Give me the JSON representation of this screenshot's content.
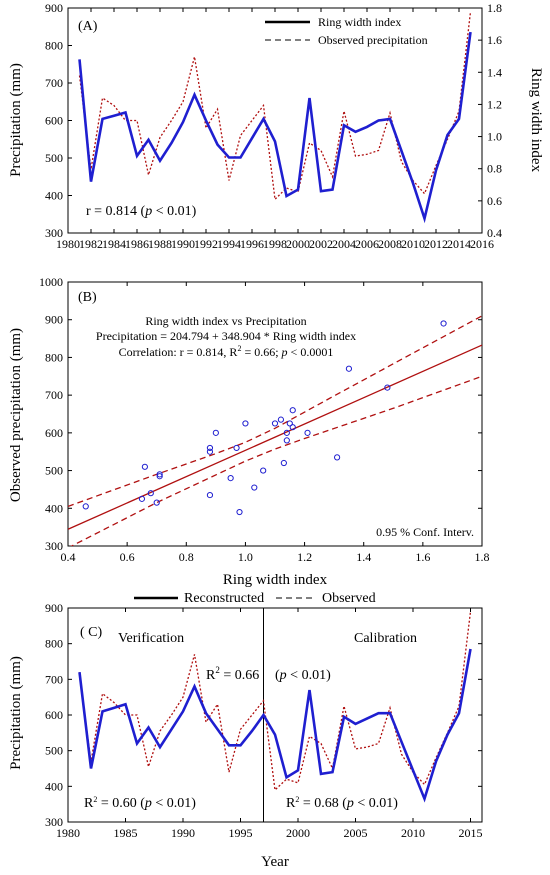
{
  "chart_data": [
    {
      "type": "line",
      "panel_label": "(A)",
      "xlabel": "",
      "ylabel": "Precipitation (mm)",
      "ylabel_right": "Ring width index",
      "xlim": [
        1980,
        2016
      ],
      "ylim": [
        300,
        900
      ],
      "ylim_right": [
        0.4,
        1.8
      ],
      "xticks": [
        "1980",
        "1982",
        "1984",
        "1986",
        "1988",
        "1990",
        "1992",
        "1994",
        "1996",
        "1998",
        "2000",
        "2002",
        "2004",
        "2006",
        "2008",
        "2010",
        "2012",
        "2014",
        "2016"
      ],
      "yticks": [
        "300",
        "400",
        "500",
        "600",
        "700",
        "800",
        "900"
      ],
      "yticks_right": [
        "0.4",
        "0.6",
        "0.8",
        "1.0",
        "1.2",
        "1.4",
        "1.6",
        "1.8"
      ],
      "legend": [
        "Ring width index",
        "Observed precipitation"
      ],
      "legend_position": "top-right",
      "annotation": "r = 0.814 (",
      "annotation_p": "p",
      "annotation_tail": " < 0.01)",
      "x": [
        1981,
        1982,
        1983,
        1984,
        1985,
        1986,
        1987,
        1988,
        1989,
        1990,
        1991,
        1992,
        1993,
        1994,
        1995,
        1996,
        1997,
        1998,
        1999,
        2000,
        2001,
        2002,
        2003,
        2004,
        2005,
        2006,
        2007,
        2008,
        2009,
        2010,
        2011,
        2012,
        2013,
        2014,
        2015
      ],
      "series": [
        {
          "name": "Ring width index",
          "axis": "right",
          "values": [
            1.48,
            0.72,
            1.11,
            1.13,
            1.15,
            0.88,
            0.98,
            0.85,
            0.96,
            1.09,
            1.26,
            1.1,
            0.95,
            0.87,
            0.87,
            0.99,
            1.11,
            0.97,
            0.63,
            0.67,
            1.24,
            0.66,
            0.67,
            1.07,
            1.03,
            1.06,
            1.1,
            1.11,
            0.91,
            0.71,
            0.49,
            0.79,
            1.01,
            1.11,
            1.65
          ]
        },
        {
          "name": "Observed precipitation",
          "axis": "left",
          "values": [
            720,
            470,
            660,
            640,
            600,
            600,
            455,
            555,
            600,
            650,
            770,
            580,
            630,
            440,
            560,
            600,
            640,
            390,
            420,
            410,
            540,
            520,
            450,
            625,
            505,
            510,
            520,
            620,
            490,
            440,
            405,
            480,
            550,
            625,
            890
          ]
        }
      ]
    },
    {
      "type": "scatter",
      "panel_label": "(B)",
      "xlabel": "Ring width index",
      "ylabel": "Observed precipitation (mm)",
      "xlim": [
        0.4,
        1.8
      ],
      "ylim": [
        300,
        1000
      ],
      "xticks": [
        "0.4",
        "0.6",
        "0.8",
        "1.0",
        "1.2",
        "1.4",
        "1.6",
        "1.8"
      ],
      "yticks": [
        "300",
        "400",
        "500",
        "600",
        "700",
        "800",
        "900",
        "1000"
      ],
      "eq_title": "Ring width index vs Precipitation",
      "equation": "Precipitation = 204.794 + 348.904 * Ring width index",
      "corr_prefix": "Correlation: r = 0.814, R",
      "corr_sup": "2",
      "corr_mid": " = 0.66; ",
      "corr_p": "p",
      "corr_tail": " < 0.0001",
      "conf_label": "0.95 %  Conf. Interv.",
      "intercept": 204.794,
      "slope": 348.904,
      "ci_lower": [
        [
          0.4,
          295
        ],
        [
          0.7,
          415
        ],
        [
          1.0,
          525
        ],
        [
          1.1,
          557
        ],
        [
          1.2,
          585
        ],
        [
          1.5,
          665
        ],
        [
          1.8,
          750
        ]
      ],
      "ci_upper": [
        [
          0.4,
          405
        ],
        [
          0.7,
          490
        ],
        [
          0.9,
          545
        ],
        [
          1.0,
          575
        ],
        [
          1.1,
          612
        ],
        [
          1.3,
          698
        ],
        [
          1.5,
          783
        ],
        [
          1.8,
          910
        ]
      ],
      "points": [
        [
          0.46,
          405
        ],
        [
          0.65,
          425
        ],
        [
          0.66,
          510
        ],
        [
          0.68,
          440
        ],
        [
          0.7,
          415
        ],
        [
          0.71,
          485
        ],
        [
          0.71,
          490
        ],
        [
          0.88,
          560
        ],
        [
          0.88,
          550
        ],
        [
          0.88,
          435
        ],
        [
          0.9,
          600
        ],
        [
          0.95,
          480
        ],
        [
          0.97,
          560
        ],
        [
          0.98,
          390
        ],
        [
          1.0,
          625
        ],
        [
          1.03,
          455
        ],
        [
          1.06,
          500
        ],
        [
          1.1,
          625
        ],
        [
          1.12,
          635
        ],
        [
          1.13,
          520
        ],
        [
          1.14,
          600
        ],
        [
          1.14,
          580
        ],
        [
          1.15,
          625
        ],
        [
          1.16,
          615
        ],
        [
          1.16,
          660
        ],
        [
          1.21,
          600
        ],
        [
          1.31,
          535
        ],
        [
          1.35,
          770
        ],
        [
          1.48,
          720
        ],
        [
          1.67,
          890
        ]
      ]
    },
    {
      "type": "line",
      "panel_label": "( C)",
      "xlabel": "Year",
      "ylabel": "Precipitation (mm)",
      "xlim": [
        1980,
        2016
      ],
      "ylim": [
        300,
        900
      ],
      "xticks": [
        "1980",
        "1985",
        "1990",
        "1995",
        "2000",
        "2005",
        "2010",
        "2015"
      ],
      "yticks": [
        "300",
        "400",
        "500",
        "600",
        "700",
        "800",
        "900"
      ],
      "legend": [
        "Reconstructed",
        "Observed"
      ],
      "legend_position": "top",
      "split_year": 1997,
      "label_left": "Verification",
      "label_right": "Calibration",
      "r2_mid_prefix": "R",
      "r2_mid_sup": "2",
      "r2_mid_tail": " = 0.66",
      "p_mid_open": "(",
      "p_mid_p": "p",
      "p_mid_tail": " < 0.01)",
      "r2_left_prefix": "R",
      "r2_left_sup": "2",
      "r2_left_mid": " = 0.60 (",
      "r2_left_p": "p",
      "r2_left_tail": " < 0.01)",
      "r2_right_prefix": "R",
      "r2_right_sup": "2",
      "r2_right_mid": " = 0.68 (",
      "r2_right_p": "p",
      "r2_right_tail": " < 0.01)",
      "x": [
        1981,
        1982,
        1983,
        1984,
        1985,
        1986,
        1987,
        1988,
        1989,
        1990,
        1991,
        1992,
        1993,
        1994,
        1995,
        1996,
        1997,
        1998,
        1999,
        2000,
        2001,
        2002,
        2003,
        2004,
        2005,
        2006,
        2007,
        2008,
        2009,
        2010,
        2011,
        2012,
        2013,
        2014,
        2015
      ],
      "series": [
        {
          "name": "Reconstructed",
          "values": [
            720,
            450,
            610,
            620,
            630,
            520,
            565,
            510,
            560,
            610,
            680,
            605,
            560,
            515,
            515,
            555,
            600,
            545,
            425,
            445,
            670,
            435,
            440,
            595,
            575,
            590,
            605,
            605,
            525,
            445,
            365,
            470,
            545,
            605,
            785
          ]
        },
        {
          "name": "Observed",
          "values": [
            720,
            470,
            660,
            635,
            600,
            600,
            455,
            555,
            600,
            650,
            770,
            580,
            630,
            440,
            560,
            600,
            640,
            390,
            420,
            410,
            540,
            520,
            450,
            625,
            505,
            510,
            520,
            620,
            490,
            440,
            405,
            480,
            550,
            625,
            890
          ]
        }
      ]
    }
  ]
}
